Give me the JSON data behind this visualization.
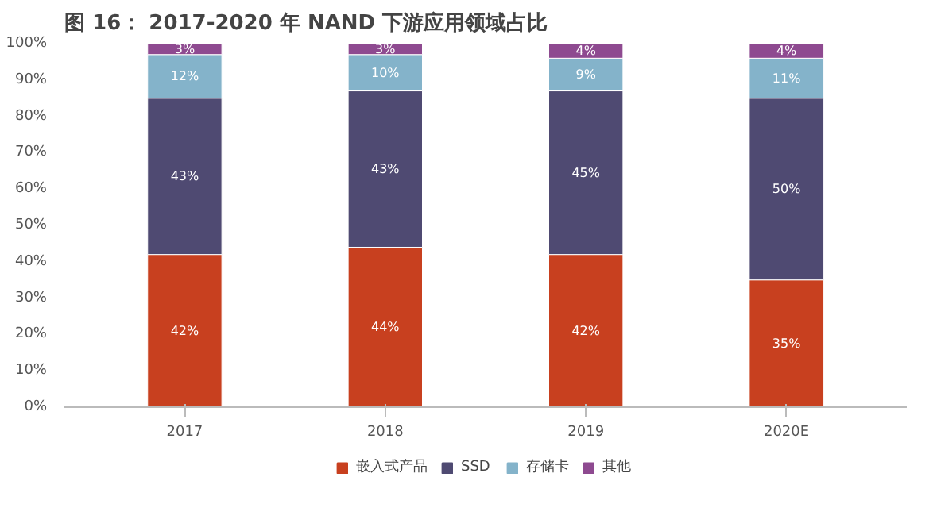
{
  "chart_data": {
    "type": "bar",
    "title": "图 16： 2017-2020 年 NAND 下游应用领域占比",
    "categories": [
      "2017",
      "2018",
      "2019",
      "2020E"
    ],
    "stacked": true,
    "ylim": [
      0,
      100
    ],
    "yticks": [
      {
        "value": 0,
        "label": "0%"
      },
      {
        "value": 10,
        "label": "10%"
      },
      {
        "value": 20,
        "label": "20%"
      },
      {
        "value": 30,
        "label": "30%"
      },
      {
        "value": 40,
        "label": "40%"
      },
      {
        "value": 50,
        "label": "50%"
      },
      {
        "value": 60,
        "label": "60%"
      },
      {
        "value": 70,
        "label": "70%"
      },
      {
        "value": 80,
        "label": "80%"
      },
      {
        "value": 90,
        "label": "90%"
      },
      {
        "value": 100,
        "label": "100%"
      }
    ],
    "legend": "bottom",
    "series": [
      {
        "name": "嵌入式产品",
        "color": "#c8401f",
        "values": [
          42,
          44,
          42,
          35
        ],
        "value_labels": [
          "42%",
          "44%",
          "42%",
          "35%"
        ]
      },
      {
        "name": "SSD",
        "color": "#4f4a72",
        "values": [
          43,
          43,
          45,
          50
        ],
        "value_labels": [
          "43%",
          "43%",
          "45%",
          "50%"
        ]
      },
      {
        "name": "存储卡",
        "color": "#84b3ca",
        "values": [
          12,
          10,
          9,
          11
        ],
        "value_labels": [
          "12%",
          "10%",
          "9%",
          "11%"
        ]
      },
      {
        "name": "其他",
        "color": "#8e4a90",
        "values": [
          3,
          3,
          4,
          4
        ],
        "value_labels": [
          "3%",
          "3%",
          "4%",
          "4%"
        ]
      }
    ]
  }
}
